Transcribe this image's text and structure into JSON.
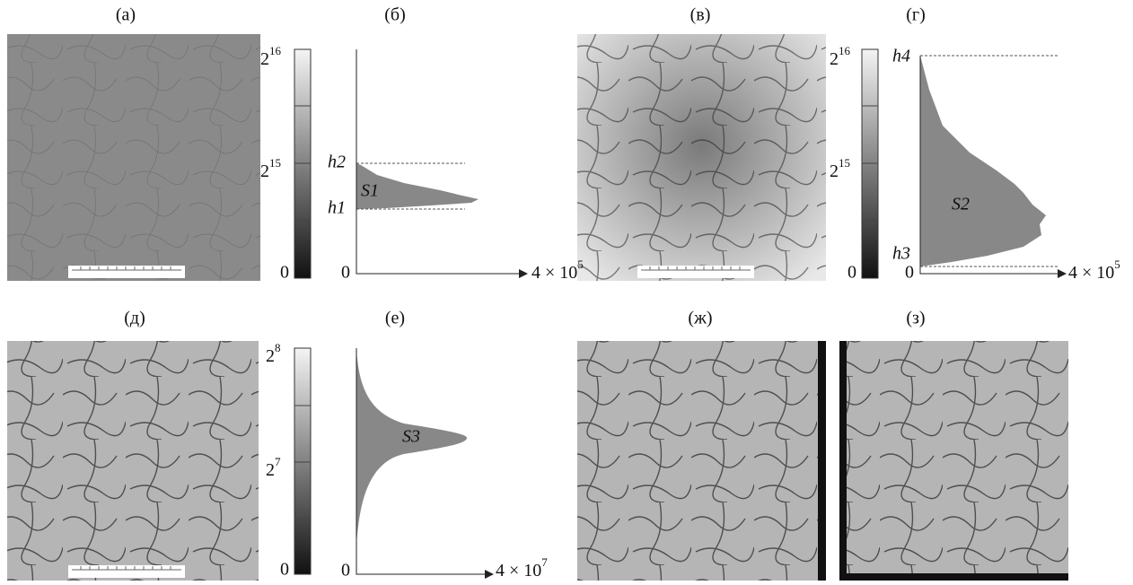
{
  "panels": [
    {
      "label": "(а)"
    },
    {
      "label": "(б)"
    },
    {
      "label": "(в)"
    },
    {
      "label": "(г)"
    },
    {
      "label": "(д)"
    },
    {
      "label": "(е)"
    },
    {
      "label": "(ж)"
    },
    {
      "label": "(з)"
    }
  ],
  "colorbars": [
    {
      "top": {
        "base": "2",
        "exp": "16"
      },
      "mid": {
        "base": "2",
        "exp": "15"
      },
      "bottom": "0"
    },
    {
      "top": {
        "base": "2",
        "exp": "16"
      },
      "mid": {
        "base": "2",
        "exp": "15"
      },
      "bottom": "0"
    },
    {
      "top": {
        "base": "2",
        "exp": "8"
      },
      "mid": {
        "base": "2",
        "exp": "7"
      },
      "bottom": "0"
    }
  ],
  "histograms": [
    {
      "origin": "0",
      "x_end": {
        "mantissa": "4 × 10",
        "exp": "5"
      },
      "upper": "h2",
      "lower": "h1",
      "area": "S1"
    },
    {
      "origin": "0",
      "x_end": {
        "mantissa": "4 × 10",
        "exp": "5"
      },
      "upper": "h4",
      "lower": "h3",
      "area": "S2"
    },
    {
      "origin": "0",
      "x_end": {
        "mantissa": "4 × 10",
        "exp": "7"
      },
      "area": "S3"
    }
  ]
}
